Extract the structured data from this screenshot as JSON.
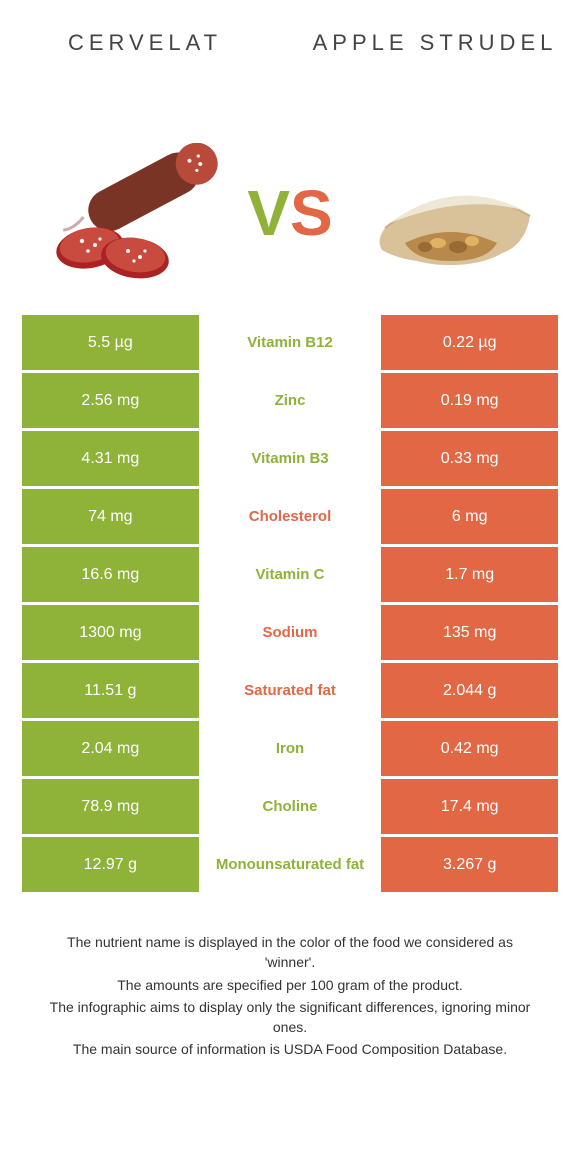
{
  "colors": {
    "left_food": "#8fb239",
    "right_food": "#e16745",
    "vs_v": "#8fb239",
    "vs_s": "#e16745",
    "text_dark": "#333333"
  },
  "header": {
    "left_title": "Cervelat",
    "right_title": "Apple strudel",
    "vs_v": "V",
    "vs_s": "S"
  },
  "rows": [
    {
      "left": "5.5 µg",
      "label": "Vitamin B12",
      "right": "0.22 µg",
      "winner": "left"
    },
    {
      "left": "2.56 mg",
      "label": "Zinc",
      "right": "0.19 mg",
      "winner": "left"
    },
    {
      "left": "4.31 mg",
      "label": "Vitamin B3",
      "right": "0.33 mg",
      "winner": "left"
    },
    {
      "left": "74 mg",
      "label": "Cholesterol",
      "right": "6 mg",
      "winner": "right"
    },
    {
      "left": "16.6 mg",
      "label": "Vitamin C",
      "right": "1.7 mg",
      "winner": "left"
    },
    {
      "left": "1300 mg",
      "label": "Sodium",
      "right": "135 mg",
      "winner": "right"
    },
    {
      "left": "11.51 g",
      "label": "Saturated fat",
      "right": "2.044 g",
      "winner": "right"
    },
    {
      "left": "2.04 mg",
      "label": "Iron",
      "right": "0.42 mg",
      "winner": "left"
    },
    {
      "left": "78.9 mg",
      "label": "Choline",
      "right": "17.4 mg",
      "winner": "left"
    },
    {
      "left": "12.97 g",
      "label": "Monounsaturated fat",
      "right": "3.267 g",
      "winner": "left"
    }
  ],
  "footnotes": [
    "The nutrient name is displayed in the color of the food we considered as 'winner'.",
    "The amounts are specified per 100 gram of the product.",
    "The infographic aims to display only the significant differences, ignoring minor ones.",
    "The main source of information is USDA Food Composition Database."
  ]
}
